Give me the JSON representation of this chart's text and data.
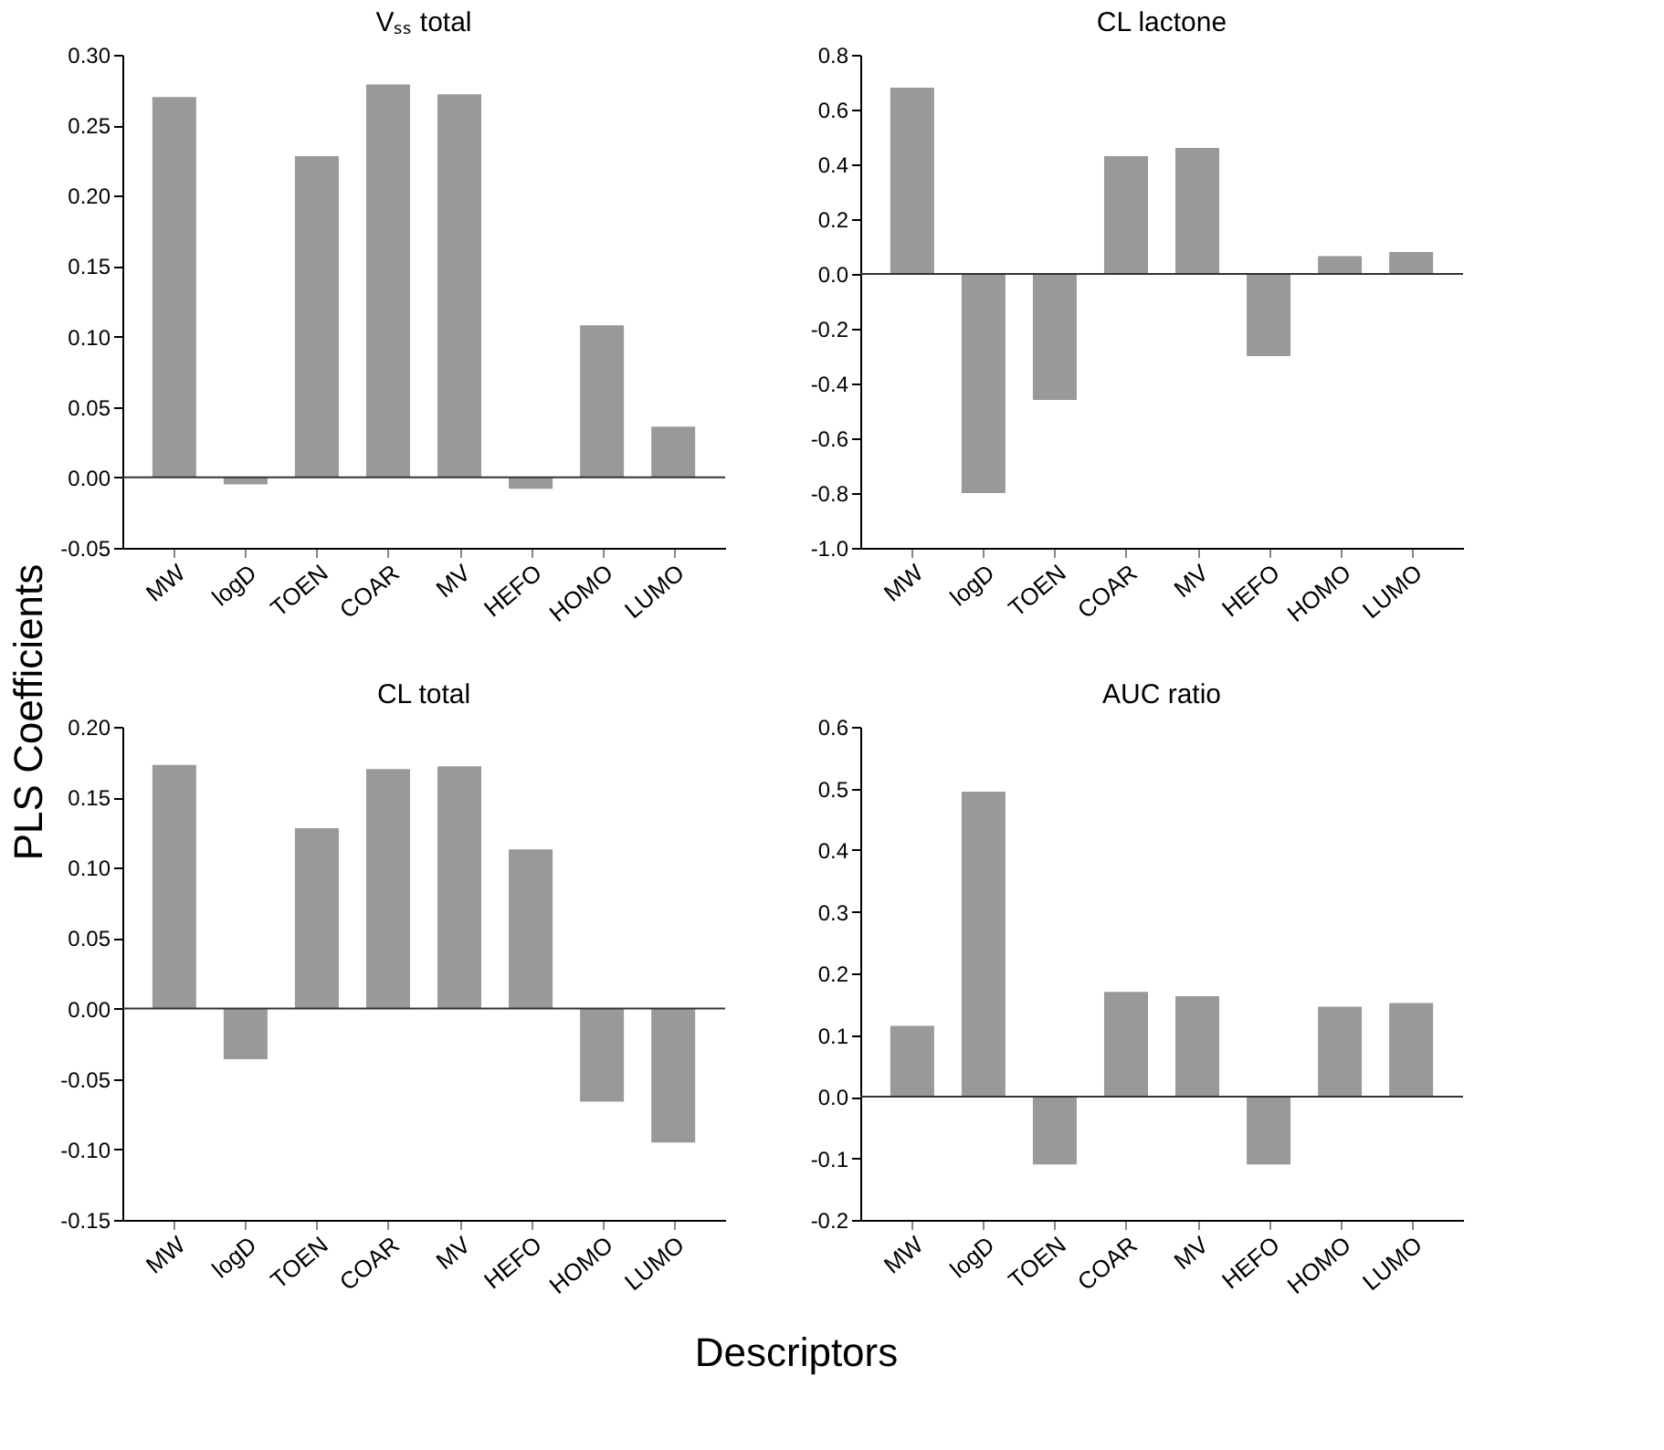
{
  "chart_data": [
    {
      "type": "bar",
      "title": "Vₛₛ total",
      "ylabel": "PLS Coefficients",
      "categories": [
        "MW",
        "logD",
        "TOEN",
        "COAR",
        "MV",
        "HEFO",
        "HOMO",
        "LUMO"
      ],
      "values": [
        0.27,
        -0.005,
        0.228,
        0.279,
        0.272,
        -0.008,
        0.108,
        0.036
      ],
      "color": "#999999",
      "ylim": [
        -0.05,
        0.3
      ],
      "yticks": [
        {
          "value": -0.05,
          "label": "-0.05"
        },
        {
          "value": 0,
          "label": "0.00"
        },
        0.05,
        {
          "value": 0.1,
          "label": "0.10"
        },
        0.15,
        {
          "value": 0.2,
          "label": "0.20"
        },
        0.25,
        {
          "value": 0.3,
          "label": "0.30"
        }
      ],
      "grid": false,
      "ref_lines": [
        {
          "axis": "y",
          "value": 0,
          "color": "#333333"
        }
      ]
    },
    {
      "type": "bar",
      "title": "CL lactone",
      "categories": [
        "MW",
        "logD",
        "TOEN",
        "COAR",
        "MV",
        "HEFO",
        "HOMO",
        "LUMO"
      ],
      "values": [
        0.68,
        -0.8,
        -0.46,
        0.43,
        0.46,
        -0.3,
        0.065,
        0.08
      ],
      "color": "#999999",
      "ylim": [
        -1.0,
        0.8
      ],
      "yticks": [
        {
          "value": -1,
          "label": "-1.0"
        },
        -0.8,
        -0.6,
        -0.4,
        -0.2,
        {
          "value": 0,
          "label": "0.0"
        },
        0.2,
        0.4,
        0.6,
        0.8
      ],
      "grid": false,
      "ref_lines": [
        {
          "axis": "y",
          "value": 0,
          "color": "#333333"
        }
      ]
    },
    {
      "type": "bar",
      "title": "CL total",
      "xlabel": "Descriptors",
      "categories": [
        "MW",
        "logD",
        "TOEN",
        "COAR",
        "MV",
        "HEFO",
        "HOMO",
        "LUMO"
      ],
      "values": [
        0.173,
        -0.036,
        0.128,
        0.17,
        0.172,
        0.113,
        -0.066,
        -0.095
      ],
      "color": "#999999",
      "ylim": [
        -0.15,
        0.2
      ],
      "yticks": [
        -0.15,
        {
          "value": -0.1,
          "label": "-0.10"
        },
        -0.05,
        {
          "value": 0,
          "label": "0.00"
        },
        0.05,
        {
          "value": 0.1,
          "label": "0.10"
        },
        0.15,
        {
          "value": 0.2,
          "label": "0.20"
        }
      ],
      "grid": false,
      "ref_lines": [
        {
          "axis": "y",
          "value": 0,
          "color": "#333333"
        }
      ]
    },
    {
      "type": "bar",
      "title": "AUC ratio",
      "categories": [
        "MW",
        "logD",
        "TOEN",
        "COAR",
        "MV",
        "HEFO",
        "HOMO",
        "LUMO"
      ],
      "values": [
        0.115,
        0.495,
        -0.11,
        0.17,
        0.163,
        -0.11,
        0.146,
        0.152
      ],
      "color": "#999999",
      "ylim": [
        -0.2,
        0.6
      ],
      "yticks": [
        -0.2,
        -0.1,
        {
          "value": 0,
          "label": "0.0"
        },
        0.1,
        0.2,
        0.3,
        0.4,
        0.5,
        0.6
      ],
      "grid": false,
      "ref_lines": [
        {
          "axis": "y",
          "value": 0,
          "color": "#333333"
        }
      ]
    }
  ]
}
